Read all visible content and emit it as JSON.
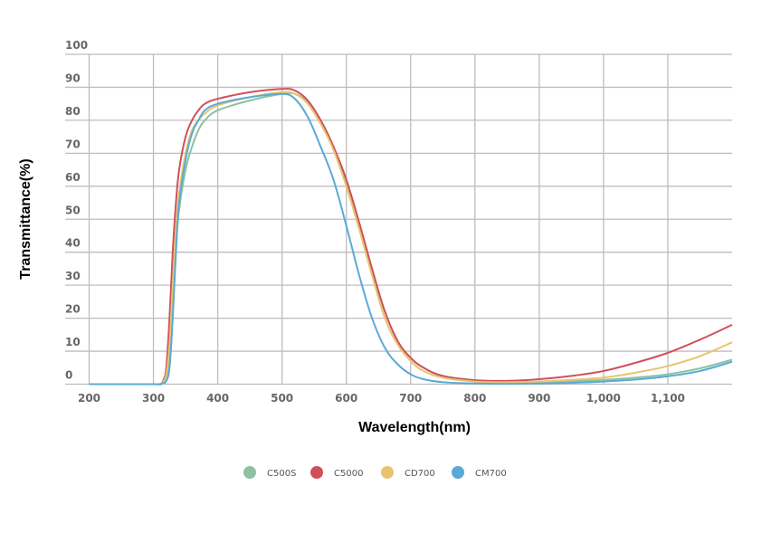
{
  "chart_data": {
    "type": "line",
    "title": "",
    "xlabel": "Wavelength(nm)",
    "ylabel": "Transmittance(%)",
    "xlim": [
      200,
      1200
    ],
    "ylim": [
      0,
      100
    ],
    "grid": true,
    "legend_position": "bottom-center",
    "x_ticks": [
      200,
      300,
      400,
      500,
      600,
      700,
      800,
      900,
      1000,
      1100
    ],
    "x_tick_labels": [
      "200",
      "300",
      "400",
      "500",
      "600",
      "700",
      "800",
      "900",
      "1,000",
      "1,100"
    ],
    "y_ticks": [
      0,
      10,
      20,
      30,
      40,
      50,
      60,
      70,
      80,
      90,
      100
    ],
    "y_tick_labels": [
      "0",
      "10",
      "20",
      "30",
      "40",
      "50",
      "60",
      "70",
      "80",
      "90",
      "100"
    ],
    "x": [
      200,
      300,
      310,
      315,
      320,
      325,
      330,
      335,
      340,
      350,
      360,
      370,
      380,
      400,
      450,
      500,
      520,
      540,
      560,
      580,
      600,
      620,
      640,
      660,
      680,
      700,
      720,
      750,
      800,
      850,
      900,
      950,
      1000,
      1050,
      1100,
      1150,
      1200
    ],
    "series": [
      {
        "name": "C500S",
        "color": "#8cc2a0",
        "values": [
          0,
          0,
          0,
          0.5,
          2,
          8,
          25,
          42,
          53,
          65,
          72,
          77,
          80,
          83,
          86,
          88,
          88,
          85.5,
          80,
          72,
          61,
          48,
          34,
          22,
          13,
          8,
          5,
          2.5,
          1.2,
          0.8,
          0.7,
          0.9,
          1.3,
          2,
          3,
          4.8,
          7.4
        ]
      },
      {
        "name": "C5000",
        "color": "#d0505a",
        "values": [
          0,
          0,
          0,
          1,
          5,
          20,
          40,
          55,
          65,
          75,
          80,
          83,
          85,
          86.5,
          88.5,
          89.5,
          89,
          86,
          80,
          72,
          62,
          49,
          35,
          22,
          13,
          8,
          5,
          2.5,
          1.2,
          1,
          1.5,
          2.5,
          4,
          6.5,
          9.5,
          13.5,
          18
        ]
      },
      {
        "name": "CD700",
        "color": "#e8c46e",
        "values": [
          0,
          0,
          0,
          0.7,
          3,
          12,
          30,
          47,
          58,
          70,
          77,
          80,
          82,
          84.5,
          87,
          88.5,
          88,
          85,
          79,
          71,
          60,
          47,
          33,
          20,
          12,
          7,
          4,
          2,
          0.8,
          0.6,
          0.8,
          1.3,
          2,
          3.5,
          5.5,
          8.5,
          12.7
        ]
      },
      {
        "name": "CM700",
        "color": "#5aaad6",
        "values": [
          0,
          0,
          0,
          0.3,
          1,
          5,
          20,
          40,
          55,
          68,
          76,
          80,
          83,
          85,
          87,
          88,
          86.5,
          81,
          72,
          62,
          48,
          33,
          20,
          11,
          6,
          3,
          1.5,
          0.6,
          0.2,
          0.1,
          0.2,
          0.4,
          0.8,
          1.4,
          2.4,
          4,
          6.8
        ]
      }
    ]
  }
}
